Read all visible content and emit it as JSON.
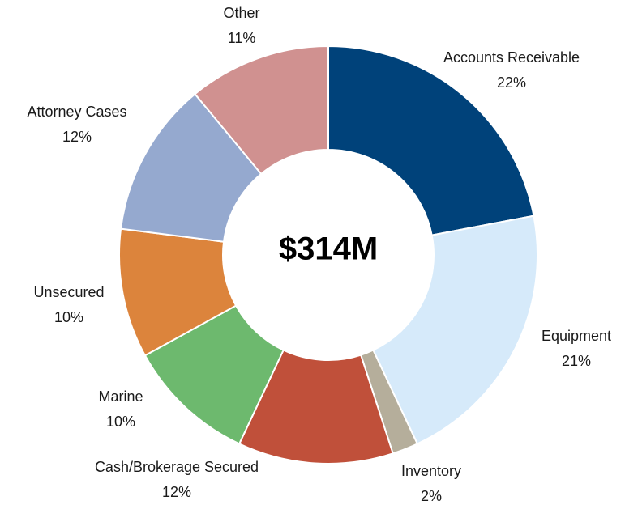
{
  "chart_data": {
    "type": "donut",
    "center_label": "$314M",
    "categories": [
      "Accounts Receivable",
      "Equipment",
      "Inventory",
      "Cash/Brokerage Secured",
      "Marine",
      "Unsecured",
      "Attorney Cases",
      "Other"
    ],
    "values": [
      22,
      21,
      2,
      12,
      10,
      10,
      12,
      11
    ],
    "value_labels": [
      "22%",
      "21%",
      "2%",
      "12%",
      "10%",
      "10%",
      "12%",
      "11%"
    ],
    "colors": [
      "#00427a",
      "#d6eafa",
      "#b5ae9b",
      "#c0503a",
      "#6db96e",
      "#dc843c",
      "#95a9cf",
      "#d09190"
    ]
  }
}
